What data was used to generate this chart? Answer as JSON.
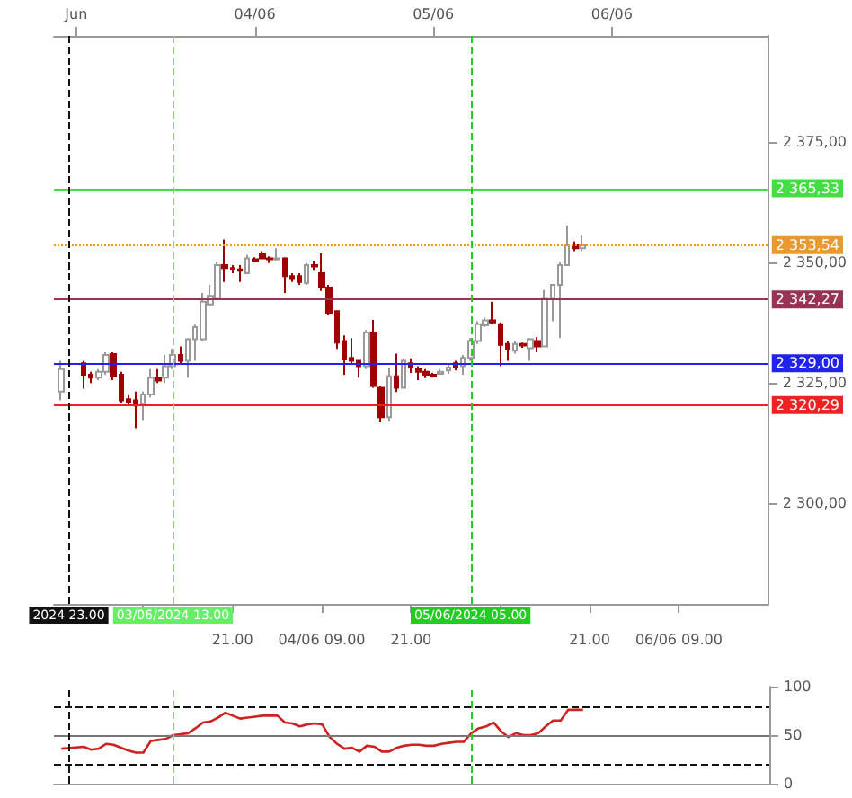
{
  "chart_data": [
    {
      "type": "candlestick",
      "x": [
        "2024-06-02T22:00",
        "2024-06-03T01:00",
        "2024-06-03T02:00",
        "2024-06-03T03:00",
        "2024-06-03T04:00",
        "2024-06-03T05:00",
        "2024-06-03T06:00",
        "2024-06-03T07:00",
        "2024-06-03T08:00",
        "2024-06-03T09:00",
        "2024-06-03T10:00",
        "2024-06-03T11:00",
        "2024-06-03T12:00",
        "2024-06-03T13:00",
        "2024-06-03T14:00",
        "2024-06-03T15:00",
        "2024-06-03T16:00",
        "2024-06-03T17:00",
        "2024-06-03T18:00",
        "2024-06-03T19:00",
        "2024-06-03T20:00",
        "2024-06-03T21:00",
        "2024-06-03T22:00",
        "2024-06-03T23:00",
        "2024-06-04T00:00",
        "2024-06-04T01:00",
        "2024-06-04T02:00",
        "2024-06-04T03:00",
        "2024-06-04T04:00",
        "2024-06-04T05:00",
        "2024-06-04T06:00",
        "2024-06-04T07:00",
        "2024-06-04T08:00",
        "2024-06-04T09:00",
        "2024-06-04T10:00",
        "2024-06-04T11:00",
        "2024-06-04T12:00",
        "2024-06-04T13:00",
        "2024-06-04T14:00",
        "2024-06-04T15:00",
        "2024-06-04T16:00",
        "2024-06-04T17:00",
        "2024-06-04T18:00",
        "2024-06-04T19:00",
        "2024-06-04T20:00",
        "2024-06-04T21:00",
        "2024-06-04T22:00",
        "2024-06-04T23:00",
        "2024-06-05T00:00",
        "2024-06-05T01:00",
        "2024-06-05T02:00",
        "2024-06-05T03:00",
        "2024-06-05T04:00",
        "2024-06-05T05:00",
        "2024-06-05T06:00",
        "2024-06-05T07:00",
        "2024-06-05T08:00",
        "2024-06-05T09:00",
        "2024-06-05T10:00",
        "2024-06-05T11:00",
        "2024-06-05T12:00",
        "2024-06-05T13:00",
        "2024-06-05T14:00",
        "2024-06-05T15:00",
        "2024-06-05T16:00",
        "2024-06-05T17:00",
        "2024-06-05T18:00",
        "2024-06-05T19:00",
        "2024-06-05T20:00"
      ],
      "ohlc": [
        [
          2323.1,
          2329.5,
          2321.3,
          2327.8
        ],
        [
          2329.0,
          2329.5,
          2323.7,
          2326.6
        ],
        [
          2326.6,
          2327.2,
          2324.9,
          2326.0
        ],
        [
          2326.0,
          2327.8,
          2325.5,
          2327.2
        ],
        [
          2327.2,
          2331.3,
          2326.6,
          2330.7
        ],
        [
          2330.9,
          2331.3,
          2325.5,
          2326.3
        ],
        [
          2326.6,
          2327.2,
          2320.8,
          2321.3
        ],
        [
          2321.5,
          2322.5,
          2320.2,
          2321.0
        ],
        [
          2321.3,
          2323.1,
          2315.5,
          2320.2
        ],
        [
          2320.4,
          2323.1,
          2317.2,
          2322.5
        ],
        [
          2322.5,
          2327.8,
          2321.9,
          2326.0
        ],
        [
          2326.0,
          2327.8,
          2324.9,
          2325.4
        ],
        [
          2326.0,
          2330.7,
          2324.9,
          2328.4
        ],
        [
          2328.4,
          2332.0,
          2327.8,
          2330.7
        ],
        [
          2330.7,
          2332.5,
          2329.0,
          2329.5
        ],
        [
          2329.5,
          2334.2,
          2326.0,
          2334.0
        ],
        [
          2334.0,
          2337.0,
          2329.5,
          2336.5
        ],
        [
          2334.0,
          2343.6,
          2333.6,
          2341.8
        ],
        [
          2341.2,
          2345.3,
          2341.0,
          2343.0
        ],
        [
          2342.4,
          2350.0,
          2342.4,
          2349.4
        ],
        [
          2349.4,
          2354.7,
          2345.9,
          2348.8
        ],
        [
          2348.8,
          2349.4,
          2347.7,
          2348.5
        ],
        [
          2348.5,
          2349.4,
          2345.9,
          2348.2
        ],
        [
          2347.7,
          2351.5,
          2347.7,
          2350.8
        ],
        [
          2350.6,
          2351.0,
          2350.0,
          2350.3
        ],
        [
          2351.8,
          2352.3,
          2350.6,
          2350.8
        ],
        [
          2350.8,
          2351.2,
          2349.8,
          2350.6
        ],
        [
          2350.6,
          2352.9,
          2350.3,
          2350.8
        ],
        [
          2350.8,
          2351.0,
          2343.6,
          2347.1
        ],
        [
          2347.1,
          2347.7,
          2345.9,
          2346.5
        ],
        [
          2347.1,
          2347.7,
          2345.3,
          2345.9
        ],
        [
          2345.7,
          2349.8,
          2345.3,
          2349.4
        ],
        [
          2349.4,
          2350.3,
          2348.2,
          2349.1
        ],
        [
          2347.7,
          2351.8,
          2344.0,
          2344.7
        ],
        [
          2344.7,
          2345.3,
          2339.0,
          2339.5
        ],
        [
          2339.8,
          2340.0,
          2332.0,
          2333.3
        ],
        [
          2333.6,
          2334.8,
          2326.6,
          2329.8
        ],
        [
          2330.1,
          2334.2,
          2329.0,
          2329.5
        ],
        [
          2329.5,
          2329.5,
          2326.0,
          2328.4
        ],
        [
          2328.4,
          2335.9,
          2327.8,
          2335.4
        ],
        [
          2335.4,
          2338.0,
          2323.9,
          2324.3
        ],
        [
          2323.9,
          2324.3,
          2316.7,
          2317.8
        ],
        [
          2317.8,
          2328.1,
          2316.9,
          2326.3
        ],
        [
          2326.3,
          2331.0,
          2323.0,
          2323.9
        ],
        [
          2323.9,
          2330.0,
          2323.7,
          2329.5
        ],
        [
          2329.0,
          2330.0,
          2327.0,
          2328.1
        ],
        [
          2327.8,
          2328.4,
          2325.5,
          2327.2
        ],
        [
          2327.2,
          2327.8,
          2325.9,
          2326.6
        ],
        [
          2326.6,
          2327.0,
          2326.0,
          2326.3
        ],
        [
          2326.8,
          2327.8,
          2326.6,
          2327.2
        ],
        [
          2327.5,
          2328.8,
          2326.8,
          2328.1
        ],
        [
          2329.0,
          2329.5,
          2327.5,
          2328.1
        ],
        [
          2328.4,
          2330.7,
          2326.6,
          2330.1
        ],
        [
          2330.1,
          2334.2,
          2329.5,
          2333.6
        ],
        [
          2333.6,
          2337.7,
          2333.0,
          2337.1
        ],
        [
          2336.9,
          2338.5,
          2336.5,
          2337.9
        ],
        [
          2337.9,
          2341.8,
          2337.1,
          2337.5
        ],
        [
          2337.1,
          2337.5,
          2328.4,
          2332.8
        ],
        [
          2333.0,
          2333.6,
          2329.5,
          2331.9
        ],
        [
          2331.6,
          2333.6,
          2331.0,
          2333.0
        ],
        [
          2333.0,
          2333.3,
          2332.2,
          2332.7
        ],
        [
          2332.1,
          2334.2,
          2329.5,
          2334.0
        ],
        [
          2333.6,
          2334.4,
          2331.3,
          2332.5
        ],
        [
          2332.5,
          2344.2,
          2332.5,
          2342.4
        ],
        [
          2342.4,
          2345.3,
          2337.7,
          2345.3
        ],
        [
          2345.3,
          2350.0,
          2334.2,
          2349.4
        ],
        [
          2349.4,
          2357.6,
          2349.4,
          2353.5
        ],
        [
          2353.5,
          2354.3,
          2352.3,
          2352.9
        ],
        [
          2352.9,
          2355.5,
          2352.3,
          2353.5
        ]
      ],
      "xlim": [
        "2024-06-02T21:00",
        "2024-06-06T21:00"
      ],
      "xticks": [
        {
          "value": "2024-06-03T09:00",
          "label": null
        },
        {
          "value": "2024-06-03T21:00",
          "label": "21.00"
        },
        {
          "value": "2024-06-04T09:00",
          "label": "04/06 09.00"
        },
        {
          "value": "2024-06-04T21:00",
          "label": "21.00"
        },
        {
          "value": "2024-06-05T09:00",
          "label": null
        },
        {
          "value": "2024-06-05T21:00",
          "label": "21.00"
        },
        {
          "value": "2024-06-06T09:00",
          "label": "06/06 09.00"
        }
      ],
      "x2lim": [
        "2024-06-02T21:00",
        "2024-06-06T21:00"
      ],
      "x2ticks": [
        {
          "value": "2024-06-03T00:00",
          "label": "Jun"
        },
        {
          "value": "2024-06-04T00:00",
          "label": "04/06"
        },
        {
          "value": "2024-06-05T00:00",
          "label": "05/06"
        },
        {
          "value": "2024-06-06T00:00",
          "label": "06/06"
        }
      ],
      "ylim": [
        2279,
        2397
      ],
      "yticks": [
        {
          "value": 2300,
          "label": "2 300,00"
        },
        {
          "value": 2325,
          "label": "2 325,00"
        },
        {
          "value": 2350,
          "label": "2 350,00"
        },
        {
          "value": 2375,
          "label": "2 375,00"
        }
      ],
      "ref_lines": [
        {
          "axis": "y",
          "value": 2365.33,
          "label": "2 365,33",
          "color": "#44dd44",
          "line_style": "solid"
        },
        {
          "axis": "y",
          "value": 2353.54,
          "label": "2 353,54",
          "color": "#e89a30",
          "line_style": "dotted"
        },
        {
          "axis": "y",
          "value": 2342.27,
          "label": "2 342,27",
          "color": "#993355",
          "line_style": "solid"
        },
        {
          "axis": "y",
          "value": 2329.0,
          "label": "2 329,00",
          "color": "#2222ee",
          "line_style": "solid"
        },
        {
          "axis": "y",
          "value": 2320.29,
          "label": "2 320,29",
          "color": "#ee2222",
          "line_style": "solid"
        },
        {
          "axis": "x",
          "value": "2024-06-02T23:00",
          "label": "2024 23.00",
          "color": "#111111",
          "line_style": "dashed"
        },
        {
          "axis": "x",
          "value": "2024-06-03T13:00",
          "label": "03/06/2024 13.00",
          "color": "#66ee66",
          "line_style": "dashed"
        },
        {
          "axis": "x",
          "value": "2024-06-05T05:00",
          "label": "05/06/2024 05.00",
          "color": "#22cc22",
          "line_style": "dashed"
        }
      ],
      "grid": false
    },
    {
      "type": "line",
      "x": [
        "2024-06-02T22:00",
        "2024-06-03T01:00",
        "2024-06-03T02:00",
        "2024-06-03T03:00",
        "2024-06-03T04:00",
        "2024-06-03T05:00",
        "2024-06-03T06:00",
        "2024-06-03T07:00",
        "2024-06-03T08:00",
        "2024-06-03T09:00",
        "2024-06-03T10:00",
        "2024-06-03T11:00",
        "2024-06-03T12:00",
        "2024-06-03T13:00",
        "2024-06-03T14:00",
        "2024-06-03T15:00",
        "2024-06-03T16:00",
        "2024-06-03T17:00",
        "2024-06-03T18:00",
        "2024-06-03T19:00",
        "2024-06-03T20:00",
        "2024-06-03T21:00",
        "2024-06-03T22:00",
        "2024-06-03T23:00",
        "2024-06-04T00:00",
        "2024-06-04T01:00",
        "2024-06-04T02:00",
        "2024-06-04T03:00",
        "2024-06-04T04:00",
        "2024-06-04T05:00",
        "2024-06-04T06:00",
        "2024-06-04T07:00",
        "2024-06-04T08:00",
        "2024-06-04T09:00",
        "2024-06-04T10:00",
        "2024-06-04T11:00",
        "2024-06-04T12:00",
        "2024-06-04T13:00",
        "2024-06-04T14:00",
        "2024-06-04T15:00",
        "2024-06-04T16:00",
        "2024-06-04T17:00",
        "2024-06-04T18:00",
        "2024-06-04T19:00",
        "2024-06-04T20:00",
        "2024-06-04T21:00",
        "2024-06-04T22:00",
        "2024-06-04T23:00",
        "2024-06-05T00:00",
        "2024-06-05T01:00",
        "2024-06-05T02:00",
        "2024-06-05T03:00",
        "2024-06-05T04:00",
        "2024-06-05T05:00",
        "2024-06-05T06:00",
        "2024-06-05T07:00",
        "2024-06-05T08:00",
        "2024-06-05T09:00",
        "2024-06-05T10:00",
        "2024-06-05T11:00",
        "2024-06-05T12:00",
        "2024-06-05T13:00",
        "2024-06-05T14:00",
        "2024-06-05T15:00",
        "2024-06-05T16:00",
        "2024-06-05T17:00",
        "2024-06-05T18:00",
        "2024-06-05T19:00",
        "2024-06-05T20:00"
      ],
      "series": [
        {
          "color": "#cc2222",
          "values": [
            36,
            38,
            35,
            36,
            41,
            40,
            37,
            34,
            32,
            32,
            44,
            45,
            46,
            50,
            51,
            52,
            57,
            63,
            64,
            68,
            73,
            70,
            67,
            68,
            69,
            70,
            70,
            70,
            63,
            62,
            59,
            61,
            62,
            61,
            48,
            41,
            36,
            37,
            33,
            39,
            38,
            33,
            33,
            37,
            39,
            40,
            40,
            39,
            39,
            41,
            42,
            43,
            43,
            52,
            57,
            59,
            63,
            54,
            48,
            52,
            50,
            50,
            52,
            59,
            65,
            65,
            76,
            76,
            76
          ]
        }
      ],
      "xlim": [
        "2024-06-02T21:00",
        "2024-06-06T21:00"
      ],
      "ylim": [
        0,
        100
      ],
      "yticks": [
        0,
        50,
        100
      ],
      "ref_lines": [
        {
          "axis": "y",
          "value": 80,
          "color": "#111111",
          "line_style": "dashed"
        },
        {
          "axis": "y",
          "value": 50,
          "color": "#777777",
          "line_style": "solid"
        },
        {
          "axis": "y",
          "value": 20,
          "color": "#111111",
          "line_style": "dashed"
        },
        {
          "axis": "x",
          "value": "2024-06-02T23:00",
          "color": "#111111",
          "line_style": "dashed"
        },
        {
          "axis": "x",
          "value": "2024-06-03T13:00",
          "color": "#66ee66",
          "line_style": "dashed"
        },
        {
          "axis": "x",
          "value": "2024-06-05T05:00",
          "color": "#22cc22",
          "line_style": "dashed"
        }
      ],
      "marker": "none",
      "line_style": "solid",
      "tick_labels": "y",
      "grid": false
    }
  ]
}
